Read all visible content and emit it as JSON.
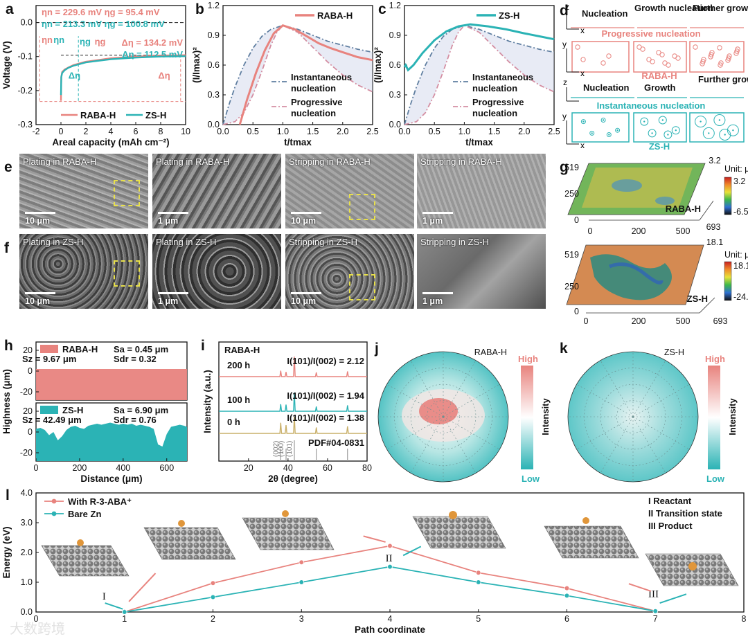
{
  "colors": {
    "raba": "#e8837e",
    "zs": "#2bb3b5",
    "axis": "#111111",
    "sem_dark": "#5a5a5a",
    "sem_light": "#a9a9a9",
    "dash_yellow": "#e8e04a"
  },
  "panels": {
    "a": {
      "letter": "a"
    },
    "b": {
      "letter": "b"
    },
    "c": {
      "letter": "c"
    },
    "d": {
      "letter": "d"
    },
    "e": {
      "letter": "e"
    },
    "f": {
      "letter": "f"
    },
    "g": {
      "letter": "g"
    },
    "h": {
      "letter": "h"
    },
    "i": {
      "letter": "i"
    },
    "j": {
      "letter": "j"
    },
    "k": {
      "letter": "k"
    },
    "l": {
      "letter": "l"
    }
  },
  "panel_d": {
    "row1_labels": [
      "Nucleation",
      "Growth nucleation",
      "Further growth"
    ],
    "row1_caption": "Progressive nucleation",
    "row1_name": "RABA-H",
    "row2_labels": [
      "Nucleation",
      "Growth",
      "Further growth"
    ],
    "row2_caption": "Instantaneous nucleation",
    "row2_name": "ZS-H",
    "axis_z": "z",
    "axis_x": "x",
    "axis_y": "y"
  },
  "panel_e": {
    "captions": [
      "Plating in RABA-H",
      "Plating in RABA-H",
      "Stripping in RABA-H",
      "Stripping in RABA-H"
    ],
    "scales": [
      "10 μm",
      "1 μm",
      "10 μm",
      "1 μm"
    ]
  },
  "panel_f": {
    "captions": [
      "Plating in ZS-H",
      "Plating in ZS-H",
      "Stripping in ZS-H",
      "Stripping in ZS-H"
    ],
    "scales": [
      "10 μm",
      "1 μm",
      "10 μm",
      "1 μm"
    ]
  },
  "panel_g": {
    "top": {
      "name": "RABA-H",
      "unit": "Unit: μm",
      "max": "3.2",
      "min": "-6.5",
      "zmax_label": "3.2",
      "y_ticks": [
        "519",
        "250",
        "0"
      ],
      "x_ticks": [
        "0",
        "200",
        "500",
        "693"
      ]
    },
    "bottom": {
      "name": "ZS-H",
      "unit": "Unit: μm",
      "max": "18.1",
      "min": "-24.4",
      "zmax_label": "18.1",
      "y_ticks": [
        "519",
        "250",
        "0"
      ],
      "x_ticks": [
        "0",
        "200",
        "500",
        "693"
      ]
    }
  },
  "panel_j": {
    "name": "RABA-H",
    "high": "High",
    "low": "Low",
    "axis_label": "Intensity"
  },
  "panel_k": {
    "name": "ZS-H",
    "high": "High",
    "low": "Low",
    "axis_label": "Intensity"
  },
  "watermark": "大数跨境",
  "chart_data": [
    {
      "id": "a",
      "type": "line",
      "xlabel": "Areal capacity (mAh cm⁻²)",
      "ylabel": "Voltage (V)",
      "xlim": [
        -2,
        10
      ],
      "ylim": [
        -0.3,
        0.05
      ],
      "x_ticks": [
        -2,
        0,
        2,
        4,
        6,
        8,
        10
      ],
      "y_ticks": [
        -0.3,
        -0.2,
        -0.1,
        0.0
      ],
      "annotations_top": [
        {
          "series": "RABA-H",
          "text": "ηn = 229.6 mV   ηg = 95.4 mV"
        },
        {
          "series": "ZS-H",
          "text": "ηn = 213.3 mV   ηg = 100.8 mV"
        }
      ],
      "annotations_right": [
        {
          "series": "RABA-H",
          "text": "Δη = 134.2 mV"
        },
        {
          "series": "ZS-H",
          "text": "Δη = 112.5 mV"
        }
      ],
      "inner_labels": {
        "eta_n": "ηn",
        "eta_g": "ηg",
        "delta_eta": "Δη"
      },
      "legend": [
        "RABA-H",
        "ZS-H"
      ],
      "series": [
        {
          "name": "RABA-H",
          "x": [
            0,
            0.01,
            0.03,
            0.1,
            0.3,
            0.6,
            1,
            2,
            4,
            6,
            8,
            10
          ],
          "y": [
            -0.23,
            -0.2,
            -0.16,
            -0.145,
            -0.138,
            -0.132,
            -0.125,
            -0.115,
            -0.105,
            -0.1,
            -0.097,
            -0.096
          ]
        },
        {
          "name": "ZS-H",
          "x": [
            0,
            0.01,
            0.03,
            0.1,
            0.3,
            0.6,
            1,
            2,
            4,
            6,
            8,
            10
          ],
          "y": [
            -0.213,
            -0.19,
            -0.16,
            -0.148,
            -0.14,
            -0.133,
            -0.127,
            -0.117,
            -0.108,
            -0.103,
            -0.1,
            -0.099
          ]
        }
      ]
    },
    {
      "id": "b",
      "type": "line",
      "xlabel": "t/tmax",
      "ylabel": "(I/Imax)²",
      "xlim": [
        0,
        2.5
      ],
      "ylim": [
        0,
        1.2
      ],
      "x_ticks": [
        0,
        0.5,
        1.0,
        1.5,
        2.0,
        2.5
      ],
      "y_ticks": [
        0,
        0.3,
        0.6,
        0.9,
        1.2
      ],
      "legend": [
        "RABA-H"
      ],
      "theory_labels": [
        "Instantaneous nucleation",
        "Progressive nucleation"
      ],
      "series": [
        {
          "name": "RABA-H",
          "x": [
            0.28,
            0.4,
            0.55,
            0.7,
            0.85,
            1.0,
            1.2,
            1.4,
            1.6,
            1.8,
            2.0,
            2.25,
            2.5
          ],
          "y": [
            0.0,
            0.25,
            0.52,
            0.75,
            0.92,
            1.0,
            0.96,
            0.89,
            0.82,
            0.77,
            0.73,
            0.68,
            0.65
          ]
        },
        {
          "name": "Instantaneous nucleation",
          "x": [
            0.0,
            0.1,
            0.2,
            0.35,
            0.5,
            0.65,
            0.8,
            1.0,
            1.25,
            1.5,
            1.75,
            2.0,
            2.25,
            2.5
          ],
          "y": [
            0.0,
            0.2,
            0.38,
            0.6,
            0.77,
            0.89,
            0.96,
            1.0,
            0.96,
            0.9,
            0.84,
            0.8,
            0.76,
            0.73
          ]
        },
        {
          "name": "Progressive nucleation",
          "x": [
            0.0,
            0.2,
            0.35,
            0.5,
            0.65,
            0.8,
            0.9,
            1.0,
            1.25,
            1.5,
            1.75,
            2.0,
            2.25,
            2.5
          ],
          "y": [
            0.0,
            0.03,
            0.12,
            0.3,
            0.54,
            0.8,
            0.93,
            1.0,
            0.93,
            0.78,
            0.63,
            0.5,
            0.4,
            0.33
          ]
        }
      ]
    },
    {
      "id": "c",
      "type": "line",
      "xlabel": "t/tmax",
      "ylabel": "(I/Imax)²",
      "xlim": [
        0,
        2.5
      ],
      "ylim": [
        0,
        1.2
      ],
      "x_ticks": [
        0,
        0.5,
        1.0,
        1.5,
        2.0,
        2.5
      ],
      "y_ticks": [
        0,
        0.3,
        0.6,
        0.9,
        1.2
      ],
      "legend": [
        "ZS-H"
      ],
      "theory_labels": [
        "Instantaneous nucleation",
        "Progressive nucleation"
      ],
      "series": [
        {
          "name": "ZS-H",
          "x": [
            0.0,
            0.02,
            0.06,
            0.15,
            0.3,
            0.5,
            0.7,
            0.9,
            1.1,
            1.4,
            1.7,
            2.0,
            2.25,
            2.5
          ],
          "y": [
            0.58,
            0.6,
            0.55,
            0.6,
            0.72,
            0.85,
            0.94,
            0.99,
            1.01,
            0.99,
            0.96,
            0.92,
            0.89,
            0.86
          ]
        },
        {
          "name": "Instantaneous nucleation",
          "x": [
            0.0,
            0.1,
            0.2,
            0.35,
            0.5,
            0.65,
            0.8,
            1.0,
            1.25,
            1.5,
            1.75,
            2.0,
            2.25,
            2.5
          ],
          "y": [
            0.0,
            0.2,
            0.38,
            0.6,
            0.77,
            0.89,
            0.96,
            1.0,
            0.96,
            0.9,
            0.84,
            0.8,
            0.76,
            0.73
          ]
        },
        {
          "name": "Progressive nucleation",
          "x": [
            0.0,
            0.2,
            0.35,
            0.5,
            0.65,
            0.8,
            0.9,
            1.0,
            1.25,
            1.5,
            1.75,
            2.0,
            2.25,
            2.5
          ],
          "y": [
            0.0,
            0.03,
            0.12,
            0.3,
            0.54,
            0.8,
            0.93,
            1.0,
            0.93,
            0.78,
            0.63,
            0.5,
            0.4,
            0.33
          ]
        }
      ]
    },
    {
      "id": "h",
      "type": "area",
      "xlabel": "Distance (μm)",
      "ylabel": "Highness (μm)",
      "xlim": [
        0,
        693
      ],
      "x_ticks": [
        0,
        200,
        400,
        600
      ],
      "top": {
        "name": "RABA-H",
        "ylim": [
          -28,
          28
        ],
        "y_ticks": [
          -20,
          0,
          20
        ],
        "stats": [
          "Sa = 0.45 μm",
          "Sz = 9.67 μm",
          "Sdr = 0.32"
        ]
      },
      "bottom": {
        "name": "ZS-H",
        "ylim": [
          -28,
          28
        ],
        "y_ticks": [
          -20,
          0,
          20
        ],
        "stats": [
          "Sa = 6.90 μm",
          "Sz = 42.49 μm",
          "Sdr = 0.76"
        ],
        "x": [
          0,
          20,
          40,
          60,
          80,
          100,
          120,
          140,
          160,
          180,
          200,
          220,
          240,
          260,
          280,
          300,
          320,
          340,
          360,
          380,
          400,
          420,
          440,
          460,
          480,
          500,
          520,
          540,
          560,
          580,
          600,
          620,
          640,
          660,
          680,
          693
        ],
        "y": [
          3,
          4,
          2,
          -3,
          0,
          -8,
          -4,
          2,
          5,
          6,
          4,
          3,
          6,
          7,
          8,
          7,
          8,
          9,
          8,
          7,
          8,
          7,
          8,
          6,
          7,
          6,
          5,
          3,
          -12,
          -14,
          -2,
          5,
          6,
          7,
          6,
          5
        ]
      }
    },
    {
      "id": "i",
      "type": "line",
      "title": "RABA-H",
      "xlabel": "2θ (degree)",
      "ylabel": "Intensity (a.u.)",
      "xlim": [
        5,
        80
      ],
      "x_ticks": [
        20,
        40,
        60,
        80
      ],
      "series": [
        {
          "name": "200 h",
          "ratio": "I(101)/I(002) = 2.12",
          "peaks": [
            [
              36.3,
              0.25
            ],
            [
              39.0,
              0.2
            ],
            [
              43.2,
              0.85
            ],
            [
              54.3,
              0.18
            ],
            [
              70.1,
              0.22
            ]
          ]
        },
        {
          "name": "100 h",
          "ratio": "I(101)/I(002) = 1.94",
          "peaks": [
            [
              36.3,
              0.3
            ],
            [
              39.0,
              0.28
            ],
            [
              43.2,
              0.8
            ],
            [
              54.3,
              0.2
            ],
            [
              70.1,
              0.25
            ]
          ]
        },
        {
          "name": "0 h",
          "ratio": "I(101)/I(002) = 1.38",
          "peaks": [
            [
              36.3,
              0.45
            ],
            [
              39.0,
              0.35
            ],
            [
              43.2,
              0.7
            ],
            [
              54.3,
              0.25
            ],
            [
              70.1,
              0.3
            ]
          ]
        }
      ],
      "reference": {
        "name": "PDF#04-0831",
        "hkl": [
          "(002)",
          "(100)",
          "(101)"
        ],
        "positions": [
          36.3,
          39.0,
          43.2,
          54.3,
          70.1
        ]
      }
    },
    {
      "id": "l",
      "type": "line",
      "xlabel": "Path coordinate",
      "ylabel": "Energy (eV)",
      "xlim": [
        0,
        8
      ],
      "ylim": [
        0,
        4.0
      ],
      "x_ticks": [
        0,
        1,
        2,
        3,
        4,
        5,
        6,
        7,
        8
      ],
      "y_ticks": [
        0.0,
        1.0,
        2.0,
        3.0,
        4.0
      ],
      "stage_labels": [
        "I",
        "II",
        "III"
      ],
      "legend_right": [
        "I  Reactant",
        "II  Transition state",
        "III  Product"
      ],
      "series": [
        {
          "name": "With R-3-ABA⁺",
          "x": [
            1,
            2,
            3,
            4,
            5,
            6,
            7
          ],
          "y": [
            0.0,
            0.97,
            1.67,
            2.22,
            1.32,
            0.8,
            0.03
          ]
        },
        {
          "name": "Bare Zn",
          "x": [
            1,
            2,
            3,
            4,
            5,
            6,
            7
          ],
          "y": [
            0.0,
            0.5,
            1.0,
            1.52,
            1.0,
            0.55,
            0.03
          ]
        }
      ]
    }
  ]
}
